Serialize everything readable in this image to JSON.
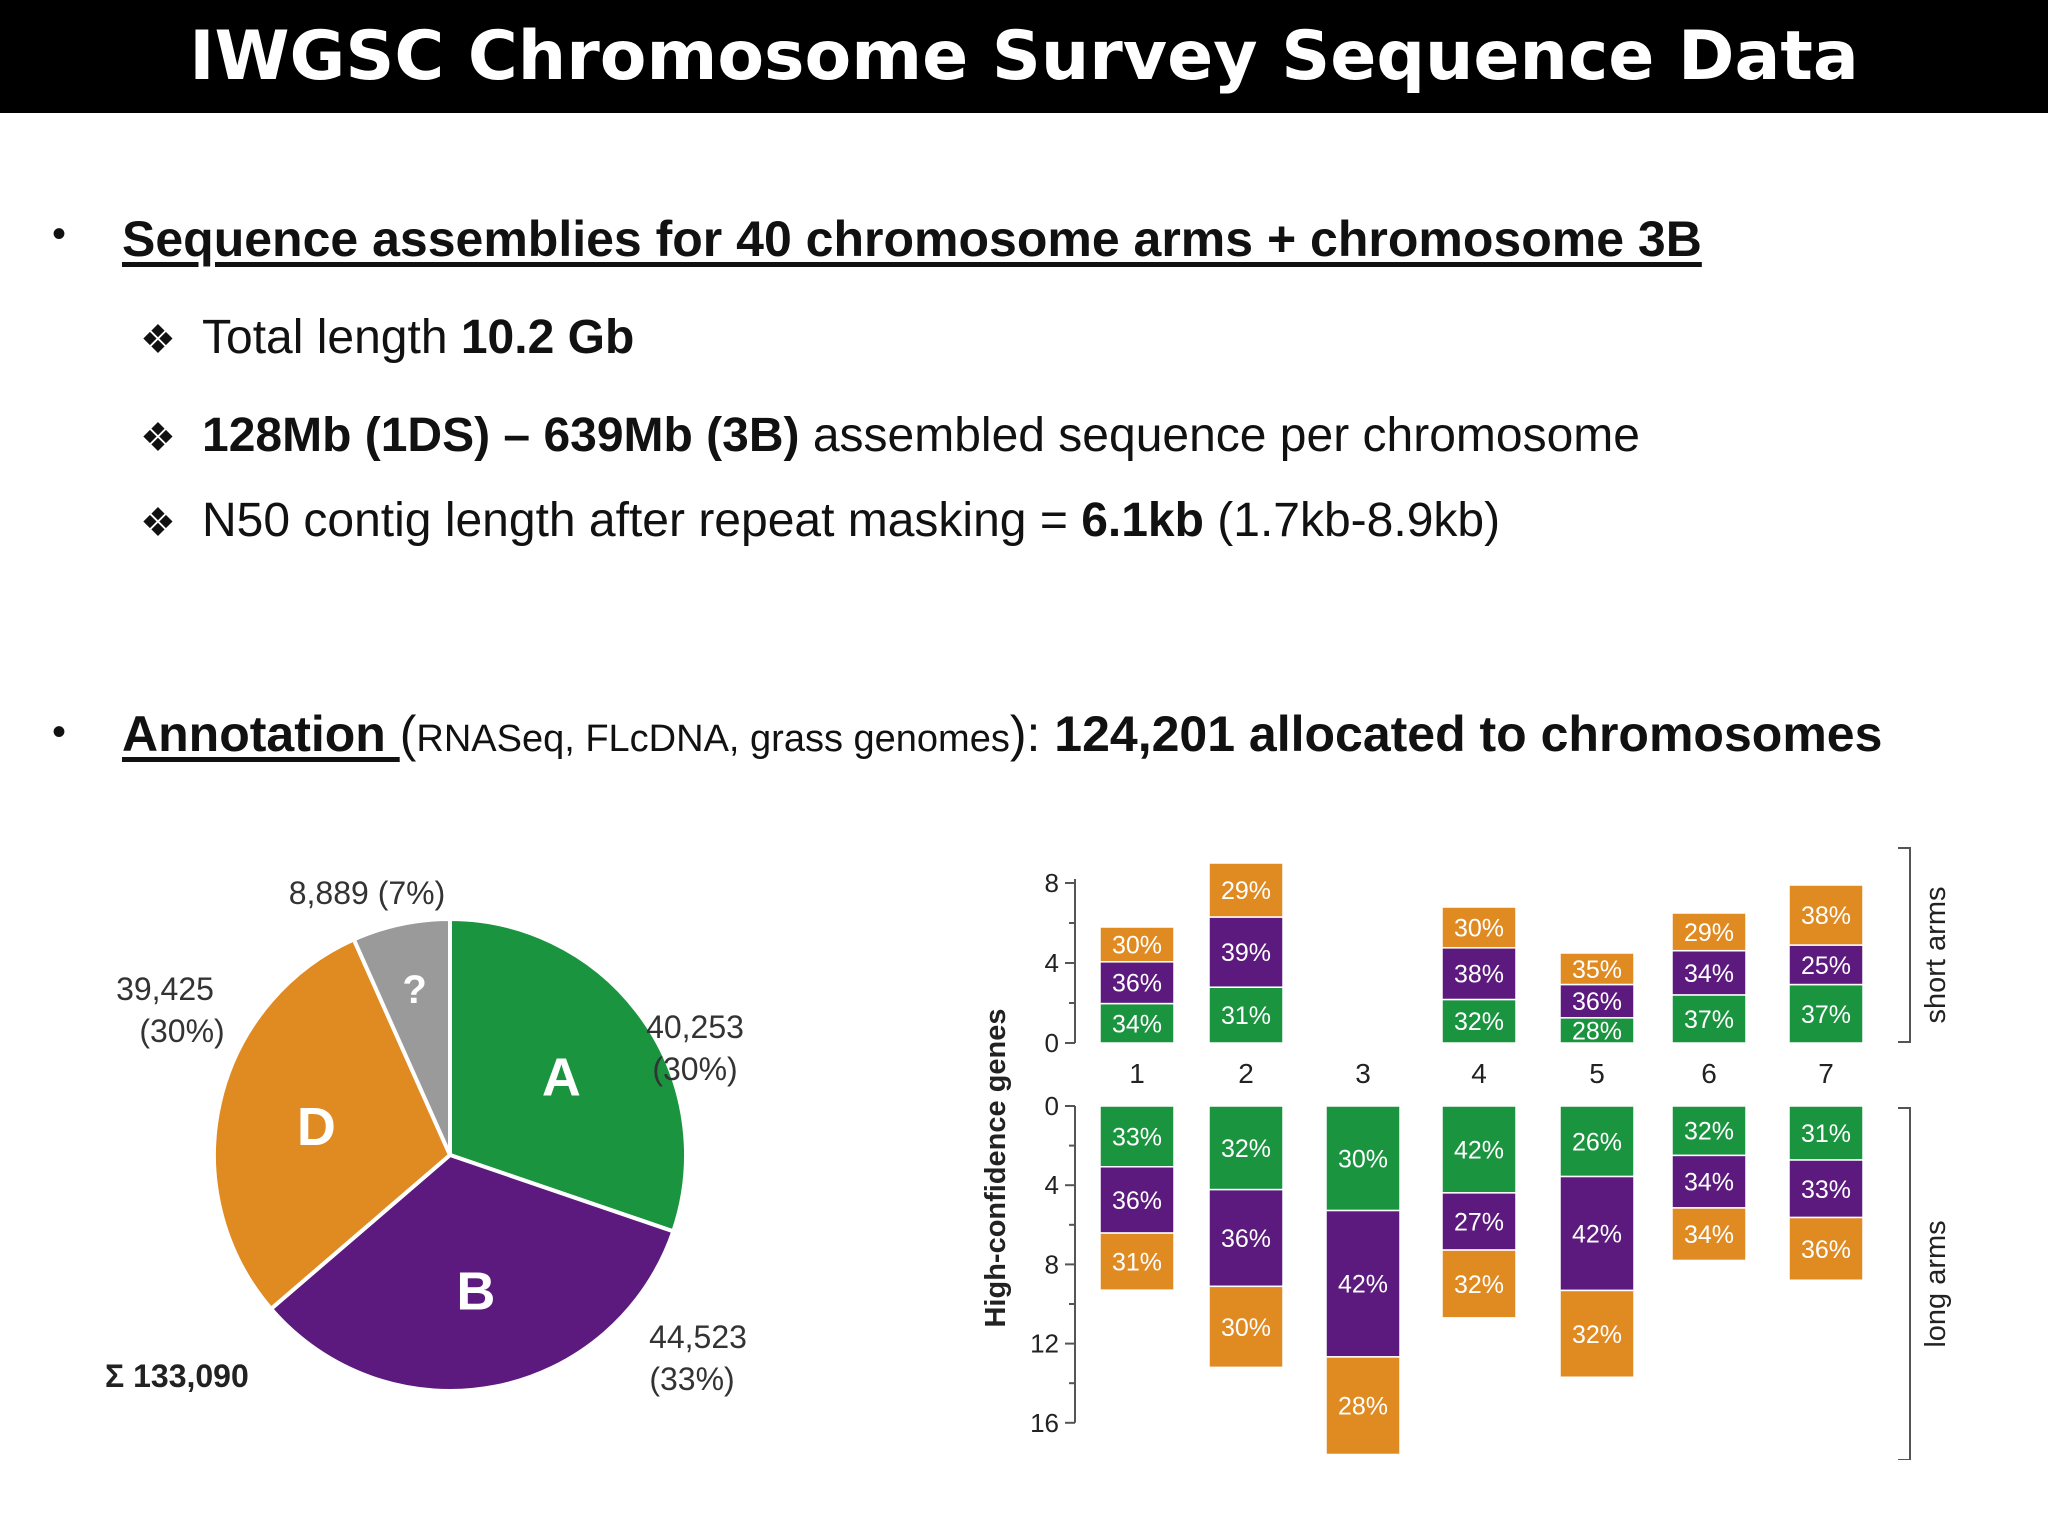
{
  "title": "IWGSC Chromosome Survey Sequence Data",
  "bullet_char": "•",
  "diamond_char": "❖",
  "section1": {
    "heading": "Sequence assemblies for 40 chromosome arms + chromosome 3B",
    "items": [
      {
        "pre": "Total length ",
        "bold": "10.2 Gb",
        "post": ""
      },
      {
        "pre": "",
        "bold": "128Mb (1DS) – 639Mb (3B)",
        "post": " assembled sequence per chromosome"
      },
      {
        "pre": "N50 contig length after repeat masking = ",
        "bold": "6.1kb",
        "post": " (1.7kb-8.9kb)"
      }
    ]
  },
  "section2": {
    "heading": "Annotation ",
    "paren_open": "(",
    "sources": "RNASeq, FLcDNA, grass genomes",
    "paren_close": "): ",
    "bold": "124,201 allocated to chromosomes"
  },
  "colors": {
    "A": "#1b9440",
    "B": "#5c1a7e",
    "D": "#e08a22",
    "unknown": "#9a9a9a"
  },
  "chart_data": [
    {
      "type": "pie",
      "total_label": "Σ 133,090",
      "slices": [
        {
          "name": "A",
          "value": 40253,
          "label_line1": "40,253",
          "label_line2": "(30%)",
          "color": "#1b9440"
        },
        {
          "name": "B",
          "value": 44523,
          "label_line1": "44,523",
          "label_line2": "(33%)",
          "color": "#5c1a7e"
        },
        {
          "name": "D",
          "value": 39425,
          "label_line1": "39,425",
          "label_line2": "(30%)",
          "color": "#e08a22"
        },
        {
          "name": "?",
          "value": 8889,
          "label_line1": "8,889 (7%)",
          "label_line2": "",
          "color": "#9a9a9a"
        }
      ]
    },
    {
      "type": "bar",
      "stacked": true,
      "ylabel": "High-confidence genes",
      "short_arm_label": "short arms",
      "long_arm_label": "long arms",
      "short_ticks": [
        "8",
        "4",
        "0"
      ],
      "long_ticks": [
        "0",
        "4",
        "8",
        "12",
        "16"
      ],
      "ylim_short": [
        0,
        8
      ],
      "ylim_long": [
        0,
        16
      ],
      "categories": [
        "1",
        "2",
        "3",
        "4",
        "5",
        "6",
        "7"
      ],
      "series_order": [
        "A",
        "B",
        "D"
      ],
      "short_arms": [
        {
          "total": 5.8,
          "pct": [
            "34%",
            "36%",
            "30%"
          ],
          "frac": [
            0.34,
            0.36,
            0.3
          ]
        },
        {
          "total": 9.0,
          "pct": [
            "31%",
            "39%",
            "29%"
          ],
          "frac": [
            0.31,
            0.39,
            0.3
          ]
        },
        null,
        {
          "total": 6.8,
          "pct": [
            "32%",
            "38%",
            "30%"
          ],
          "frac": [
            0.32,
            0.38,
            0.3
          ]
        },
        {
          "total": 4.5,
          "pct": [
            "28%",
            "36%",
            "35%"
          ],
          "frac": [
            0.28,
            0.37,
            0.35
          ]
        },
        {
          "total": 6.5,
          "pct": [
            "37%",
            "34%",
            "29%"
          ],
          "frac": [
            0.37,
            0.34,
            0.29
          ]
        },
        {
          "total": 7.9,
          "pct": [
            "37%",
            "25%",
            "38%"
          ],
          "frac": [
            0.37,
            0.25,
            0.38
          ]
        }
      ],
      "long_arms": [
        {
          "total": 9.3,
          "pct": [
            "33%",
            "36%",
            "31%"
          ],
          "frac": [
            0.33,
            0.36,
            0.31
          ]
        },
        {
          "total": 13.2,
          "pct": [
            "32%",
            "36%",
            "30%"
          ],
          "frac": [
            0.32,
            0.37,
            0.31
          ]
        },
        {
          "total": 17.6,
          "pct": [
            "30%",
            "42%",
            "28%"
          ],
          "frac": [
            0.3,
            0.42,
            0.28
          ]
        },
        {
          "total": 10.7,
          "pct": [
            "42%",
            "27%",
            "32%"
          ],
          "frac": [
            0.41,
            0.27,
            0.32
          ]
        },
        {
          "total": 13.7,
          "pct": [
            "26%",
            "42%",
            "32%"
          ],
          "frac": [
            0.26,
            0.42,
            0.32
          ]
        },
        {
          "total": 7.8,
          "pct": [
            "32%",
            "34%",
            "34%"
          ],
          "frac": [
            0.32,
            0.34,
            0.34
          ]
        },
        {
          "total": 8.8,
          "pct": [
            "31%",
            "33%",
            "36%"
          ],
          "frac": [
            0.31,
            0.33,
            0.36
          ]
        }
      ]
    }
  ]
}
